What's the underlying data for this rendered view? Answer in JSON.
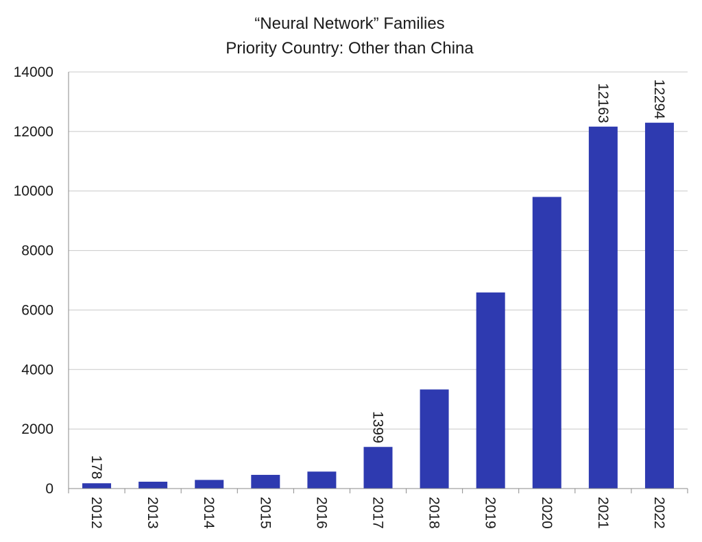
{
  "chart_data": {
    "type": "bar",
    "title": "“Neural Network” Families",
    "subtitle": "Priority Country: Other than China",
    "xlabel": "",
    "ylabel": "",
    "categories": [
      "2012",
      "2013",
      "2014",
      "2015",
      "2016",
      "2017",
      "2018",
      "2019",
      "2020",
      "2021",
      "2022"
    ],
    "series": [
      {
        "values": [
          178,
          230,
          290,
          460,
          570,
          1399,
          3330,
          6590,
          9800,
          12163,
          12294
        ],
        "data_labels": [
          "178",
          null,
          null,
          null,
          null,
          "1399",
          null,
          null,
          null,
          "12163",
          "12294"
        ]
      }
    ],
    "ylim": [
      0,
      14000
    ],
    "yticks": [
      0,
      2000,
      4000,
      6000,
      8000,
      10000,
      12000,
      14000
    ],
    "grid": true,
    "legend": "none",
    "colors": {
      "bar": "#2e3ab0"
    }
  }
}
